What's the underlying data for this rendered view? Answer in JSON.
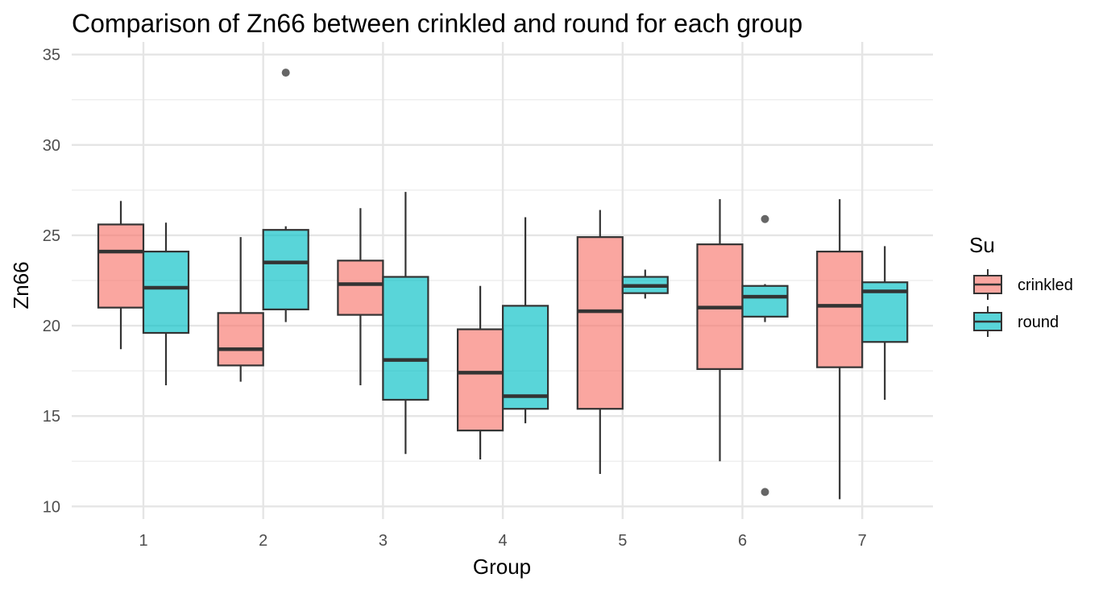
{
  "chart_data": {
    "type": "boxplot",
    "title": "Comparison of Zn66 between crinkled and round for each group",
    "xlabel": "Group",
    "ylabel": "Zn66",
    "categories": [
      "1",
      "2",
      "3",
      "4",
      "5",
      "6",
      "7"
    ],
    "ylim": [
      9.3,
      35.7
    ],
    "yticks": [
      10,
      15,
      20,
      25,
      30,
      35
    ],
    "grid": true,
    "legend": {
      "title": "Su",
      "position": "right"
    },
    "series": [
      {
        "name": "crinkled",
        "color": "#F8766D",
        "boxes": [
          {
            "group": "1",
            "min": 18.7,
            "q1": 21.0,
            "median": 24.1,
            "q3": 25.6,
            "max": 26.9,
            "outliers": []
          },
          {
            "group": "2",
            "min": 16.9,
            "q1": 17.8,
            "median": 18.7,
            "q3": 20.7,
            "max": 24.9,
            "outliers": []
          },
          {
            "group": "3",
            "min": 16.7,
            "q1": 20.6,
            "median": 22.3,
            "q3": 23.6,
            "max": 26.5,
            "outliers": []
          },
          {
            "group": "4",
            "min": 12.6,
            "q1": 14.2,
            "median": 17.4,
            "q3": 19.8,
            "max": 22.2,
            "outliers": []
          },
          {
            "group": "5",
            "min": 11.8,
            "q1": 15.4,
            "median": 20.8,
            "q3": 24.9,
            "max": 26.4,
            "outliers": []
          },
          {
            "group": "6",
            "min": 12.5,
            "q1": 17.6,
            "median": 21.0,
            "q3": 24.5,
            "max": 27.0,
            "outliers": []
          },
          {
            "group": "7",
            "min": 10.4,
            "q1": 17.7,
            "median": 21.1,
            "q3": 24.1,
            "max": 27.0,
            "outliers": []
          }
        ]
      },
      {
        "name": "round",
        "color": "#00BFC4",
        "boxes": [
          {
            "group": "1",
            "min": 16.7,
            "q1": 19.6,
            "median": 22.1,
            "q3": 24.1,
            "max": 25.7,
            "outliers": []
          },
          {
            "group": "2",
            "min": 20.2,
            "q1": 20.9,
            "median": 23.5,
            "q3": 25.3,
            "max": 25.5,
            "outliers": [
              34.0
            ]
          },
          {
            "group": "3",
            "min": 12.9,
            "q1": 15.9,
            "median": 18.1,
            "q3": 22.7,
            "max": 27.4,
            "outliers": []
          },
          {
            "group": "4",
            "min": 14.6,
            "q1": 15.4,
            "median": 16.1,
            "q3": 21.1,
            "max": 26.0,
            "outliers": []
          },
          {
            "group": "5",
            "min": 21.5,
            "q1": 21.8,
            "median": 22.2,
            "q3": 22.7,
            "max": 23.1,
            "outliers": []
          },
          {
            "group": "6",
            "min": 20.2,
            "q1": 20.5,
            "median": 21.6,
            "q3": 22.2,
            "max": 22.3,
            "outliers": [
              25.9,
              10.8
            ]
          },
          {
            "group": "7",
            "min": 15.9,
            "q1": 19.1,
            "median": 21.9,
            "q3": 22.4,
            "max": 24.4,
            "outliers": []
          }
        ]
      }
    ]
  }
}
